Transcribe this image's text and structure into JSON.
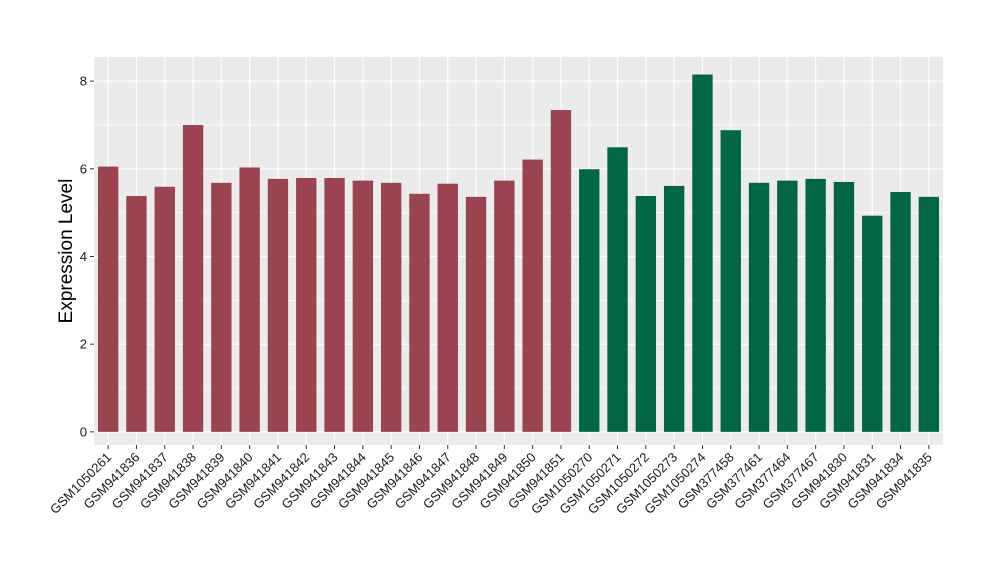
{
  "chart_data": {
    "type": "bar",
    "title": "",
    "xlabel": "",
    "ylabel": "Expression Level",
    "ylim": [
      -0.3,
      8.55
    ],
    "yticks": [
      0,
      2,
      4,
      6,
      8
    ],
    "grid": true,
    "legend": "none",
    "categories": [
      "GSM1050261",
      "GSM941836",
      "GSM941837",
      "GSM941838",
      "GSM941839",
      "GSM941840",
      "GSM941841",
      "GSM941842",
      "GSM941843",
      "GSM941844",
      "GSM941845",
      "GSM941846",
      "GSM941847",
      "GSM941848",
      "GSM941849",
      "GSM941850",
      "GSM941851",
      "GSM1050270",
      "GSM1050271",
      "GSM1050272",
      "GSM1050273",
      "GSM1050274",
      "GSM377458",
      "GSM377461",
      "GSM377464",
      "GSM377467",
      "GSM941830",
      "GSM941831",
      "GSM941834",
      "GSM941835"
    ],
    "values": [
      6.05,
      5.38,
      5.59,
      7.0,
      5.68,
      6.03,
      5.77,
      5.79,
      5.79,
      5.73,
      5.68,
      5.43,
      5.66,
      5.36,
      5.73,
      6.21,
      7.34,
      5.99,
      6.49,
      5.38,
      5.61,
      8.15,
      6.88,
      5.68,
      5.73,
      5.77,
      5.7,
      4.93,
      5.47,
      5.36
    ],
    "bar_colors": [
      "#9b4450",
      "#9b4450",
      "#9b4450",
      "#9b4450",
      "#9b4450",
      "#9b4450",
      "#9b4450",
      "#9b4450",
      "#9b4450",
      "#9b4450",
      "#9b4450",
      "#9b4450",
      "#9b4450",
      "#9b4450",
      "#9b4450",
      "#9b4450",
      "#9b4450",
      "#006644",
      "#006644",
      "#006644",
      "#006644",
      "#006644",
      "#006644",
      "#006644",
      "#006644",
      "#006644",
      "#006644",
      "#006644",
      "#006644",
      "#006644"
    ],
    "panel_background": "#ebebeb",
    "gridline_color": "#ffffff"
  }
}
